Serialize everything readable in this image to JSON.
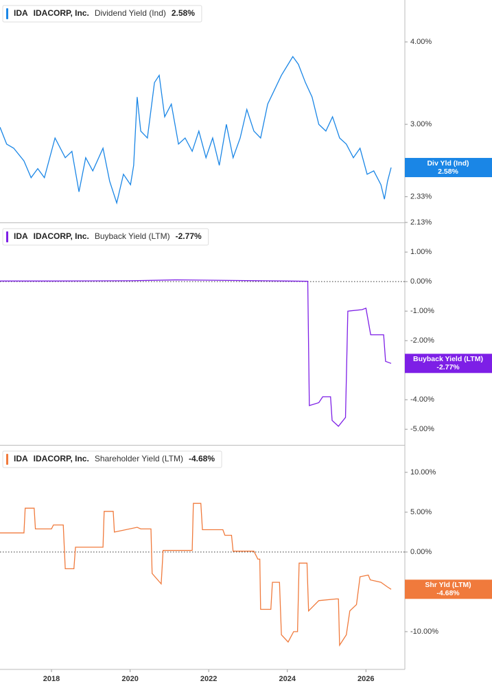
{
  "chart_data": [
    {
      "type": "line",
      "ticker": "IDA",
      "company": "IDACORP, Inc.",
      "metric": "Dividend Yield (Ind)",
      "badge_label": "Div Yld (Ind)",
      "last_value": {
        "value": 2.58,
        "label": "2.58%"
      },
      "color": "#1a86e6",
      "log_scale": true,
      "xlim": [
        2016.69,
        2026.99
      ],
      "ylim": [
        2.13,
        4.63
      ],
      "yticks": [
        {
          "value": 4,
          "label": "4.00%"
        },
        {
          "value": 3,
          "label": "3.00%"
        },
        {
          "value": 2.33,
          "label": "2.33%"
        },
        {
          "value": 2.13,
          "label": "2.13%"
        }
      ],
      "x": [
        2016.69,
        2016.86,
        2017.04,
        2017.3,
        2017.48,
        2017.65,
        2017.82,
        2018.09,
        2018.35,
        2018.52,
        2018.7,
        2018.87,
        2019.05,
        2019.31,
        2019.48,
        2019.66,
        2019.83,
        2020.01,
        2020.09,
        2020.18,
        2020.27,
        2020.44,
        2020.62,
        2020.74,
        2020.88,
        2021.05,
        2021.23,
        2021.4,
        2021.58,
        2021.75,
        2021.93,
        2022.1,
        2022.27,
        2022.45,
        2022.62,
        2022.8,
        2022.97,
        2023.15,
        2023.32,
        2023.5,
        2023.67,
        2023.85,
        2024.02,
        2024.14,
        2024.28,
        2024.46,
        2024.63,
        2024.8,
        2024.98,
        2025.15,
        2025.33,
        2025.5,
        2025.68,
        2025.85,
        2026.03,
        2026.2,
        2026.38,
        2026.47,
        2026.55,
        2026.64
      ],
      "values": [
        2.97,
        2.8,
        2.76,
        2.64,
        2.49,
        2.57,
        2.49,
        2.86,
        2.67,
        2.73,
        2.37,
        2.67,
        2.55,
        2.76,
        2.46,
        2.28,
        2.52,
        2.43,
        2.6,
        3.3,
        2.93,
        2.86,
        3.47,
        3.56,
        3.08,
        3.22,
        2.8,
        2.86,
        2.73,
        2.93,
        2.67,
        2.86,
        2.6,
        3.0,
        2.67,
        2.86,
        3.16,
        2.93,
        2.86,
        3.22,
        3.38,
        3.56,
        3.7,
        3.8,
        3.7,
        3.47,
        3.3,
        3.0,
        2.93,
        3.08,
        2.86,
        2.8,
        2.67,
        2.76,
        2.52,
        2.55,
        2.43,
        2.31,
        2.46,
        2.58
      ]
    },
    {
      "type": "line",
      "ticker": "IDA",
      "company": "IDACORP, Inc.",
      "metric": "Buyback Yield (LTM)",
      "badge_label": "Buyback Yield (LTM)",
      "last_value": {
        "value": -2.77,
        "label": "-2.77%"
      },
      "color": "#7d1fe6",
      "hline": 0,
      "xlim": [
        2016.69,
        2026.99
      ],
      "ylim": [
        -5.53,
        1.98
      ],
      "yticks": [
        {
          "value": 1,
          "label": "1.00%"
        },
        {
          "value": 0,
          "label": "0.00%"
        },
        {
          "value": -1,
          "label": "-1.00%"
        },
        {
          "value": -2,
          "label": "-2.00%"
        },
        {
          "value": -4,
          "label": "-4.00%"
        },
        {
          "value": -5,
          "label": "-5.00%"
        }
      ],
      "x": [
        2016.69,
        2018.0,
        2020.0,
        2021.2,
        2022.5,
        2024.0,
        2024.52,
        2024.56,
        2024.8,
        2024.9,
        2025.1,
        2025.14,
        2025.3,
        2025.48,
        2025.54,
        2025.9,
        2026.0,
        2026.04,
        2026.12,
        2026.45,
        2026.5,
        2026.64
      ],
      "values": [
        0.02,
        0.02,
        0.03,
        0.06,
        0.04,
        0.02,
        0.01,
        -4.2,
        -4.1,
        -3.9,
        -3.9,
        -4.7,
        -4.9,
        -4.6,
        -1.0,
        -0.95,
        -0.9,
        -1.2,
        -1.8,
        -1.8,
        -2.7,
        -2.77
      ]
    },
    {
      "type": "line",
      "ticker": "IDA",
      "company": "IDACORP, Inc.",
      "metric": "Shareholder Yield (LTM)",
      "badge_label": "Shr Yld (LTM)",
      "last_value": {
        "value": -4.68,
        "label": "-4.68%"
      },
      "color": "#f07a3c",
      "hline": 0,
      "xlim": [
        2016.69,
        2026.99
      ],
      "ylim": [
        -14.74,
        13.36
      ],
      "yticks": [
        {
          "value": 10,
          "label": "10.00%"
        },
        {
          "value": 5,
          "label": "5.00%"
        },
        {
          "value": 0,
          "label": "0.00%"
        },
        {
          "value": -10,
          "label": "-10.00%"
        }
      ],
      "xticks": [
        2018,
        2020,
        2022,
        2024,
        2026
      ],
      "x": [
        2016.69,
        2017.3,
        2017.33,
        2017.56,
        2017.59,
        2018.0,
        2018.05,
        2018.3,
        2018.35,
        2018.57,
        2018.61,
        2019.31,
        2019.34,
        2019.57,
        2019.6,
        2020.18,
        2020.27,
        2020.53,
        2020.56,
        2020.79,
        2020.84,
        2021.58,
        2021.61,
        2021.8,
        2021.84,
        2022.36,
        2022.41,
        2022.58,
        2022.62,
        2023.15,
        2023.25,
        2023.3,
        2023.32,
        2023.58,
        2023.62,
        2023.8,
        2023.85,
        2024.02,
        2024.16,
        2024.26,
        2024.3,
        2024.5,
        2024.54,
        2024.8,
        2025.24,
        2025.3,
        2025.33,
        2025.5,
        2025.59,
        2025.76,
        2025.85,
        2026.06,
        2026.11,
        2026.38,
        2026.55,
        2026.64
      ],
      "values": [
        2.4,
        2.4,
        5.5,
        5.5,
        2.9,
        2.9,
        3.4,
        3.4,
        -2.1,
        -2.1,
        0.6,
        0.6,
        5.1,
        5.1,
        2.5,
        3.1,
        2.9,
        2.9,
        -2.7,
        -4.0,
        0.2,
        0.2,
        6.1,
        6.1,
        2.8,
        2.8,
        2.1,
        2.1,
        0.1,
        0.1,
        -0.9,
        -0.9,
        -7.2,
        -7.2,
        -3.8,
        -3.8,
        -10.4,
        -11.3,
        -10.0,
        -10.0,
        -1.4,
        -1.4,
        -7.4,
        -6.1,
        -5.9,
        -5.9,
        -11.7,
        -10.4,
        -7.4,
        -6.6,
        -3.1,
        -2.9,
        -3.5,
        -3.8,
        -4.4,
        -4.68
      ]
    }
  ]
}
